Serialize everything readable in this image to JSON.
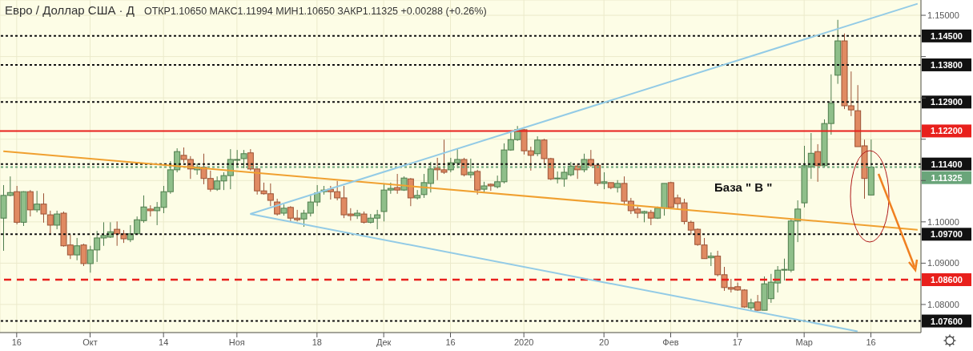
{
  "chart_data": {
    "type": "candlestick",
    "title": "Евро / Доллар США · Д",
    "subtitle": "ОТКР1.10650 МАКС1.11994 МИН1.10650 ЗАКР1.11325 +0.00288 (+0.26%)",
    "categories": [
      null,
      null,
      "16",
      null,
      null,
      null,
      null,
      null,
      null,
      null,
      null,
      null,
      null,
      "Окт",
      null,
      null,
      null,
      null,
      null,
      null,
      null,
      null,
      null,
      null,
      "14",
      null,
      null,
      null,
      null,
      null,
      null,
      null,
      null,
      null,
      null,
      "Ноя",
      null,
      null,
      null,
      null,
      null,
      null,
      null,
      null,
      null,
      null,
      null,
      "18",
      null,
      null,
      null,
      null,
      null,
      null,
      null,
      null,
      null,
      "Дек",
      null,
      null,
      null,
      null,
      null,
      null,
      null,
      null,
      null,
      "16",
      null,
      null,
      null,
      null,
      null,
      null,
      null,
      null,
      null,
      null,
      "2020",
      null,
      null,
      null,
      null,
      null,
      null,
      null,
      null,
      null,
      null,
      null,
      "20",
      null,
      null,
      null,
      null,
      null,
      null,
      null,
      null,
      null,
      "Фев",
      null,
      null,
      null,
      null,
      null,
      null,
      null,
      null,
      null,
      "17",
      null,
      null,
      null,
      null,
      null,
      null,
      null,
      null,
      null,
      "Мар",
      null,
      null,
      null,
      null,
      null,
      null,
      null,
      null,
      null,
      "16",
      null,
      null,
      null,
      null,
      null,
      null,
      null
    ],
    "ohlc": [
      [
        1.1009,
        1.1089,
        1.093,
        1.1064
      ],
      [
        1.1064,
        1.111,
        1.1062,
        1.1071
      ],
      [
        1.1073,
        1.1087,
        1.0994,
        1.0999
      ],
      [
        1.0999,
        1.1074,
        1.099,
        1.1073
      ],
      [
        1.1073,
        1.1077,
        1.1013,
        1.1029
      ],
      [
        1.1029,
        1.1075,
        1.1023,
        1.1043
      ],
      [
        1.1043,
        1.1069,
        1.0998,
        1.1019
      ],
      [
        1.1017,
        1.1027,
        1.0969,
        1.0992
      ],
      [
        1.0992,
        1.1027,
        1.0982,
        1.1019
      ],
      [
        1.1021,
        1.1025,
        1.094,
        1.0942
      ],
      [
        1.0944,
        1.0969,
        1.091,
        1.092
      ],
      [
        1.092,
        1.0961,
        1.0907,
        1.0942
      ],
      [
        1.0944,
        1.0947,
        1.0893,
        1.0899
      ],
      [
        1.0899,
        1.0942,
        1.0877,
        1.0932
      ],
      [
        1.0932,
        1.0978,
        1.0903,
        1.0961
      ],
      [
        1.0961,
        1.0999,
        1.0942,
        1.0967
      ],
      [
        1.0963,
        1.0999,
        1.0961,
        1.0976
      ],
      [
        1.0982,
        1.1001,
        1.0942,
        1.0971
      ],
      [
        1.0971,
        1.098,
        1.0949,
        1.0959
      ],
      [
        1.0957,
        1.0992,
        1.0951,
        1.0971
      ],
      [
        1.0971,
        1.1013,
        1.0969,
        1.1005
      ],
      [
        1.1003,
        1.1064,
        1.0998,
        1.1036
      ],
      [
        1.1031,
        1.104,
        1.1013,
        1.1027
      ],
      [
        1.1027,
        1.1048,
        1.0992,
        1.1035
      ],
      [
        1.1035,
        1.1087,
        1.1021,
        1.1073
      ],
      [
        1.1073,
        1.1147,
        1.1068,
        1.1126
      ],
      [
        1.1126,
        1.1178,
        1.112,
        1.117
      ],
      [
        1.1161,
        1.118,
        1.1143,
        1.1151
      ],
      [
        1.1151,
        1.1159,
        1.1104,
        1.1128
      ],
      [
        1.1126,
        1.1141,
        1.1114,
        1.1132
      ],
      [
        1.1132,
        1.1165,
        1.1091,
        1.1105
      ],
      [
        1.1105,
        1.1124,
        1.1073,
        1.1079
      ],
      [
        1.1079,
        1.111,
        1.1075,
        1.1099
      ],
      [
        1.1099,
        1.112,
        1.1077,
        1.1112
      ],
      [
        1.1112,
        1.1176,
        1.1079,
        1.1151
      ],
      [
        1.1151,
        1.1174,
        1.1132,
        1.1151
      ],
      [
        1.1153,
        1.1174,
        1.113,
        1.1165
      ],
      [
        1.1167,
        1.1176,
        1.1124,
        1.1128
      ],
      [
        1.1128,
        1.113,
        1.1066,
        1.1075
      ],
      [
        1.1075,
        1.1095,
        1.1066,
        1.1068
      ],
      [
        1.1068,
        1.1093,
        1.1038,
        1.1052
      ],
      [
        1.1048,
        1.1056,
        1.1015,
        1.1019
      ],
      [
        1.1021,
        1.1042,
        1.1015,
        1.1033
      ],
      [
        1.1035,
        1.1038,
        1.1001,
        1.1009
      ],
      [
        1.1009,
        1.1029,
        1.1001,
        1.1005
      ],
      [
        1.1007,
        1.1029,
        1.0988,
        1.1021
      ],
      [
        1.1021,
        1.1066,
        1.1013,
        1.1048
      ],
      [
        1.1048,
        1.1089,
        1.1038,
        1.107
      ],
      [
        1.1073,
        1.1087,
        1.1066,
        1.1077
      ],
      [
        1.1079,
        1.1087,
        1.1054,
        1.1073
      ],
      [
        1.1073,
        1.1099,
        1.1052,
        1.1058
      ],
      [
        1.1058,
        1.1087,
        1.1009,
        1.1017
      ],
      [
        1.1019,
        1.1033,
        1.1003,
        1.1015
      ],
      [
        1.1015,
        1.1029,
        1.1007,
        1.1021
      ],
      [
        1.1019,
        1.1025,
        1.0996,
        1.0999
      ],
      [
        1.0999,
        1.1019,
        1.0996,
        1.1009
      ],
      [
        1.1009,
        1.1029,
        1.0982,
        1.1017
      ],
      [
        1.1025,
        1.1091,
        1.1001,
        1.1077
      ],
      [
        1.1077,
        1.1095,
        1.1068,
        1.1081
      ],
      [
        1.1083,
        1.1116,
        1.1068,
        1.1077
      ],
      [
        1.1077,
        1.111,
        1.1075,
        1.1106
      ],
      [
        1.1104,
        1.1106,
        1.1038,
        1.1058
      ],
      [
        1.1058,
        1.1077,
        1.1054,
        1.1064
      ],
      [
        1.1066,
        1.1116,
        1.1058,
        1.1095
      ],
      [
        1.1093,
        1.1145,
        1.1071,
        1.1128
      ],
      [
        1.113,
        1.1155,
        1.1101,
        1.1126
      ],
      [
        1.1126,
        1.1199,
        1.1116,
        1.112
      ],
      [
        1.1126,
        1.1155,
        1.112,
        1.1143
      ],
      [
        1.1143,
        1.1176,
        1.113,
        1.1151
      ],
      [
        1.1151,
        1.1155,
        1.111,
        1.1114
      ],
      [
        1.1114,
        1.1153,
        1.1106,
        1.112
      ],
      [
        1.1122,
        1.1126,
        1.1066,
        1.1077
      ],
      [
        1.1079,
        1.1097,
        1.1071,
        1.1087
      ],
      [
        1.1091,
        1.1093,
        1.1075,
        1.1087
      ],
      [
        1.1085,
        1.1112,
        1.1081,
        1.1097
      ],
      [
        1.1097,
        1.119,
        1.1093,
        1.1174
      ],
      [
        1.1174,
        1.1221,
        1.1172,
        1.1199
      ],
      [
        1.1199,
        1.1232,
        1.1196,
        1.1223
      ],
      [
        1.1223,
        1.1225,
        1.1163,
        1.1172
      ],
      [
        1.1172,
        1.1182,
        1.1124,
        1.1161
      ],
      [
        1.1165,
        1.1207,
        1.1159,
        1.1198
      ],
      [
        1.1198,
        1.1201,
        1.1139,
        1.1153
      ],
      [
        1.1153,
        1.1155,
        1.1101,
        1.1104
      ],
      [
        1.1106,
        1.1122,
        1.1093,
        1.1106
      ],
      [
        1.1104,
        1.113,
        1.1085,
        1.112
      ],
      [
        1.1114,
        1.1145,
        1.111,
        1.1135
      ],
      [
        1.1135,
        1.1141,
        1.1104,
        1.1126
      ],
      [
        1.1126,
        1.1165,
        1.112,
        1.1151
      ],
      [
        1.1151,
        1.1174,
        1.1133,
        1.1137
      ],
      [
        1.1137,
        1.1139,
        1.1087,
        1.1093
      ],
      [
        1.1093,
        1.112,
        1.1079,
        1.1097
      ],
      [
        1.1095,
        1.1095,
        1.1079,
        1.1083
      ],
      [
        1.1083,
        1.1101,
        1.1071,
        1.1093
      ],
      [
        1.1093,
        1.111,
        1.104,
        1.105
      ],
      [
        1.105,
        1.1058,
        1.1019,
        1.1027
      ],
      [
        1.1031,
        1.1037,
        1.1009,
        1.1021
      ],
      [
        1.1021,
        1.1027,
        1.0999,
        1.1025
      ],
      [
        1.1023,
        1.1029,
        1.0992,
        1.1009
      ],
      [
        1.1009,
        1.1037,
        1.1007,
        1.1033
      ],
      [
        1.1033,
        1.1093,
        1.1015,
        1.1093
      ],
      [
        1.1095,
        1.1097,
        1.1033,
        1.1035
      ],
      [
        1.1058,
        1.1066,
        1.1031,
        1.1044
      ],
      [
        1.1046,
        1.1056,
        1.0994,
        1.1001
      ],
      [
        1.0999,
        1.1003,
        1.0969,
        1.098
      ],
      [
        1.0982,
        1.0984,
        1.0942,
        1.0945
      ],
      [
        1.0944,
        1.0961,
        1.0911,
        1.0911
      ],
      [
        1.0913,
        1.0926,
        1.0893,
        1.0917
      ],
      [
        1.0917,
        1.093,
        1.0868,
        1.0872
      ],
      [
        1.0872,
        1.0891,
        1.0833,
        1.0841
      ],
      [
        1.0841,
        1.0862,
        1.0829,
        1.0837
      ],
      [
        1.0843,
        1.0853,
        1.0833,
        1.0835
      ],
      [
        1.0835,
        1.0837,
        1.0792,
        1.0794
      ],
      [
        1.0792,
        1.0814,
        1.0786,
        1.0804
      ],
      [
        1.0806,
        1.0823,
        1.0784,
        1.0786
      ],
      [
        1.0786,
        1.0868,
        1.0786,
        1.085
      ],
      [
        1.0814,
        1.0874,
        1.0804,
        1.0854
      ],
      [
        1.0852,
        1.0893,
        1.0829,
        1.0883
      ],
      [
        1.0883,
        1.0911,
        1.0858,
        1.0885
      ],
      [
        1.0883,
        1.1007,
        1.0878,
        1.1002
      ],
      [
        1.1002,
        1.1052,
        1.0951,
        1.1031
      ],
      [
        1.1046,
        1.1184,
        1.1035,
        1.1136
      ],
      [
        1.1133,
        1.1215,
        1.1104,
        1.1166
      ],
      [
        1.117,
        1.1188,
        1.1097,
        1.1136
      ],
      [
        1.1136,
        1.1248,
        1.1133,
        1.1238
      ],
      [
        1.1238,
        1.1357,
        1.1211,
        1.1287
      ],
      [
        1.1355,
        1.1489,
        1.1334,
        1.1438
      ],
      [
        1.1438,
        1.1456,
        1.1273,
        1.1281
      ],
      [
        1.1281,
        1.1364,
        1.1256,
        1.1271
      ],
      [
        1.1269,
        1.1331,
        1.1182,
        1.1182
      ],
      [
        1.1184,
        1.1199,
        1.1056,
        1.1105
      ],
      [
        1.1065,
        1.11994,
        1.1065,
        1.11325
      ],
      null,
      null,
      null,
      null,
      null,
      null,
      null
    ],
    "series": [
      {
        "type": "line",
        "color": "#f0a030",
        "values": [
          1.1171,
          null,
          null,
          null,
          null,
          null,
          null,
          null,
          null,
          null,
          null,
          null,
          null,
          null,
          null,
          null,
          null,
          null,
          null,
          null,
          null,
          null,
          null,
          null,
          null,
          null,
          null,
          null,
          null,
          null,
          null,
          null,
          null,
          null,
          null,
          null,
          null,
          null,
          null,
          null,
          null,
          null,
          null,
          null,
          null,
          null,
          null,
          null,
          null,
          null,
          null,
          null,
          null,
          null,
          null,
          null,
          null,
          null,
          null,
          null,
          null,
          null,
          null,
          null,
          null,
          null,
          null,
          null,
          null,
          null,
          null,
          null,
          null,
          null,
          null,
          null,
          null,
          null,
          null,
          null,
          null,
          null,
          null,
          null,
          null,
          null,
          null,
          null,
          null,
          null,
          null,
          null,
          null,
          null,
          null,
          null,
          null,
          null,
          null,
          null,
          null,
          null,
          null,
          null,
          null,
          null,
          null,
          null,
          null,
          null,
          null,
          null,
          null,
          null,
          null,
          null,
          null,
          null,
          null,
          null,
          null,
          null,
          null,
          null,
          null,
          null,
          null,
          null,
          null,
          null,
          null,
          null,
          null,
          null,
          null,
          null,
          null,
          1.0981
        ]
      },
      {
        "type": "line",
        "color": "#93cbe6",
        "values": [
          null,
          null,
          null,
          null,
          null,
          null,
          null,
          null,
          null,
          null,
          null,
          null,
          null,
          null,
          null,
          null,
          null,
          null,
          null,
          null,
          null,
          null,
          null,
          null,
          null,
          null,
          null,
          null,
          null,
          null,
          null,
          null,
          null,
          null,
          null,
          null,
          null,
          1.1019,
          null,
          null,
          null,
          null,
          null,
          null,
          null,
          null,
          null,
          null,
          null,
          null,
          null,
          null,
          null,
          null,
          null,
          null,
          null,
          null,
          null,
          null,
          null,
          null,
          null,
          null,
          null,
          null,
          null,
          null,
          null,
          null,
          null,
          null,
          null,
          null,
          null,
          null,
          null,
          null,
          null,
          null,
          null,
          null,
          null,
          null,
          null,
          null,
          null,
          null,
          null,
          null,
          null,
          null,
          null,
          null,
          null,
          null,
          null,
          null,
          null,
          null,
          null,
          null,
          null,
          null,
          null,
          null,
          null,
          null,
          null,
          null,
          null,
          null,
          null,
          null,
          null,
          null,
          null,
          null,
          null,
          null,
          null,
          null,
          null,
          null,
          null,
          null,
          null,
          null,
          null,
          null,
          null,
          null,
          null,
          null,
          null,
          null,
          null,
          1.1528
        ]
      },
      {
        "type": "line",
        "color": "#93cbe6",
        "values": [
          null,
          null,
          null,
          null,
          null,
          null,
          null,
          null,
          null,
          null,
          null,
          null,
          null,
          null,
          null,
          null,
          null,
          null,
          null,
          null,
          null,
          null,
          null,
          null,
          null,
          null,
          null,
          null,
          null,
          null,
          null,
          null,
          null,
          null,
          null,
          null,
          null,
          1.1019,
          null,
          null,
          null,
          null,
          null,
          null,
          null,
          null,
          null,
          null,
          null,
          null,
          null,
          null,
          null,
          null,
          null,
          null,
          null,
          null,
          null,
          null,
          null,
          null,
          null,
          null,
          null,
          null,
          null,
          null,
          null,
          null,
          null,
          null,
          null,
          null,
          null,
          null,
          null,
          null,
          null,
          null,
          null,
          null,
          null,
          null,
          null,
          null,
          null,
          null,
          null,
          null,
          null,
          null,
          null,
          null,
          null,
          null,
          null,
          null,
          null,
          null,
          null,
          null,
          null,
          null,
          null,
          null,
          null,
          null,
          null,
          null,
          null,
          null,
          null,
          null,
          null,
          null,
          null,
          null,
          null,
          null,
          null,
          null,
          null,
          null,
          null,
          null,
          null,
          null,
          1.0735,
          null,
          null,
          null,
          null,
          null,
          null,
          null,
          null,
          null
        ]
      }
    ],
    "ylim": [
      1.0732,
      1.1537
    ],
    "yticks": [
      {
        "value": 1.08,
        "label": "1.08000"
      },
      {
        "value": 1.09,
        "label": "1.09000"
      },
      {
        "value": 1.1,
        "label": "1.10000"
      },
      {
        "value": 1.11,
        "label": null
      },
      {
        "value": 1.12,
        "label": null
      },
      {
        "value": 1.13,
        "label": null
      },
      {
        "value": 1.14,
        "label": null
      },
      {
        "value": 1.15,
        "label": "1.15000"
      }
    ],
    "ref_lines": [
      {
        "axis": "y",
        "value": 1.145,
        "label": "1.14500",
        "color": "#111111",
        "line_style": "dotted"
      },
      {
        "axis": "y",
        "value": 1.138,
        "label": "1.13800",
        "color": "#111111",
        "line_style": "dotted"
      },
      {
        "axis": "y",
        "value": 1.129,
        "label": "1.12900",
        "color": "#111111",
        "line_style": "dotted"
      },
      {
        "axis": "y",
        "value": 1.122,
        "label": "1.12200",
        "color": "#e8201c",
        "line_style": "solid"
      },
      {
        "axis": "y",
        "value": 1.114,
        "label": "1.11400",
        "color": "#111111",
        "line_style": "dotted"
      },
      {
        "axis": "y",
        "value": 1.11325,
        "label": "1.11325",
        "color": "#6aa57a",
        "line_style": "dotted"
      },
      {
        "axis": "y",
        "value": 1.097,
        "label": "1.09700",
        "color": "#111111",
        "line_style": "dotted"
      },
      {
        "axis": "y",
        "value": 1.086,
        "label": "1.08600",
        "color": "#e8201c",
        "line_style": "dashed"
      },
      {
        "axis": "y",
        "value": 1.076,
        "label": "1.07600",
        "color": "#111111",
        "line_style": "dotted"
      }
    ],
    "annotations": [
      "База \" В \""
    ],
    "grid": true
  }
}
